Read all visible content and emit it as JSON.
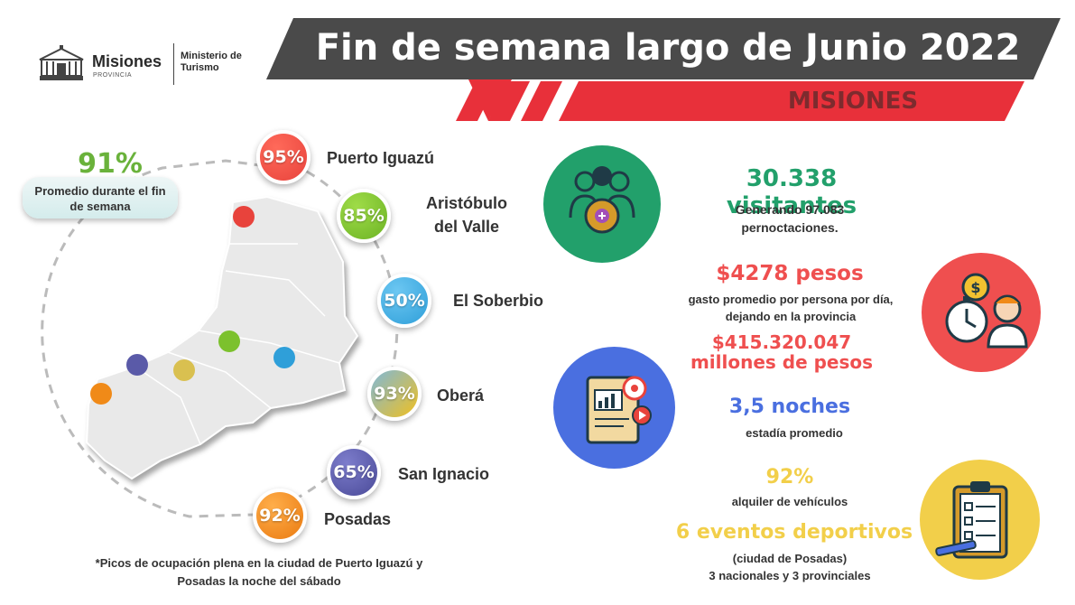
{
  "header": {
    "title": "Fin de semana largo de Junio 2022",
    "subtitle": "MISIONES",
    "logo_brand": "Misiones",
    "logo_brand_sub": "PROVINCIA",
    "logo_ministry": "Ministerio de Turismo"
  },
  "average": {
    "value": "91%",
    "label": "Promedio durante el fin de semana"
  },
  "cities": [
    {
      "name": "Puerto Iguazú",
      "percent": "95%",
      "color": "#e8433c"
    },
    {
      "name": "Aristóbulo del Valle",
      "percent": "85%",
      "color": "#7cc12d"
    },
    {
      "name": "El Soberbio",
      "percent": "50%",
      "color": "#2f9fd9"
    },
    {
      "name": "Oberá",
      "percent": "93%",
      "color": "#f0c020"
    },
    {
      "name": "San Ignacio",
      "percent": "65%",
      "color": "#5a5aa8"
    },
    {
      "name": "Posadas",
      "percent": "92%",
      "color": "#f08a18"
    }
  ],
  "footnote": "*Picos de ocupación plena en la ciudad de Puerto Iguazú y Posadas la noche del sábado",
  "stats": {
    "visitors_value": "30.338 visitantes",
    "visitors_detail": "Generando 97.083 pernoctaciones.",
    "spend_value": "$4278 pesos",
    "spend_detail": "gasto promedio por persona por día, dejando en la provincia",
    "spend_total": "$415.320.047 millones de pesos",
    "nights_value": "3,5 noches",
    "nights_detail": "estadía promedio",
    "rental_value": "92%",
    "rental_detail": "alquiler de vehículos",
    "events_value": "6 eventos deportivos",
    "events_detail_1": "(ciudad de Posadas)",
    "events_detail_2": "3 nacionales y 3 provinciales"
  },
  "colors": {
    "banner_dark": "#4a4a4a",
    "banner_red": "#e8303a",
    "green": "#22a06b",
    "red": "#ef4f4f",
    "blue": "#4a6fe0",
    "yellow": "#f2cf4a"
  },
  "icons": {
    "visitors": "people-gear-icon",
    "spend": "money-clock-person-icon",
    "nights": "report-target-icon",
    "events": "clipboard-checklist-icon"
  }
}
